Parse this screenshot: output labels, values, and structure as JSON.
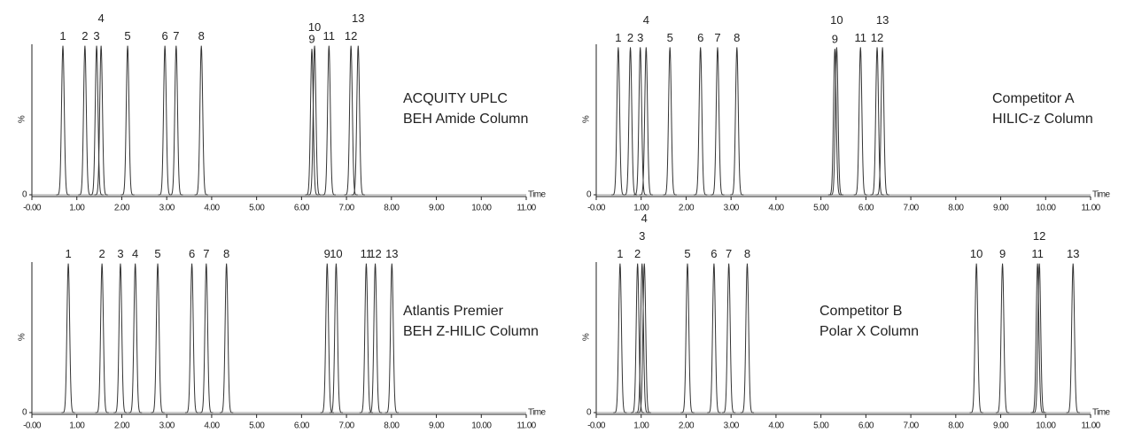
{
  "chart_data": [
    {
      "type": "chromatogram",
      "title_lines": [
        "ACQUITY UPLC",
        "BEH Amide Column"
      ],
      "x_label": "Time",
      "y_label": "%",
      "color": "#333333",
      "xlim": [
        0,
        11
      ],
      "ylim": [
        0,
        100
      ],
      "yticks": [
        0
      ],
      "xticks": [
        {
          "value": 0,
          "label": "-0.00"
        },
        {
          "value": 1,
          "label": "1.00"
        },
        {
          "value": 2,
          "label": "2.00"
        },
        {
          "value": 3,
          "label": "3.00"
        },
        {
          "value": 4,
          "label": "4.00"
        },
        {
          "value": 5,
          "label": "5.00"
        },
        {
          "value": 6,
          "label": "6.00"
        },
        {
          "value": 7,
          "label": "7.00"
        },
        {
          "value": 8,
          "label": "8.00"
        },
        {
          "value": 9,
          "label": "9.00"
        },
        {
          "value": 10,
          "label": "10.00"
        },
        {
          "value": 11,
          "label": "11.00"
        }
      ],
      "peak_labels": [
        "1",
        "2",
        "3",
        "4",
        "5",
        "6",
        "7",
        "8",
        "9",
        "10",
        "11",
        "12",
        "13"
      ],
      "x": [
        0.69,
        1.18,
        1.44,
        1.54,
        2.13,
        2.96,
        3.21,
        3.77,
        6.23,
        6.29,
        6.61,
        7.1,
        7.26
      ],
      "values": [
        99,
        99,
        99,
        99,
        99,
        99,
        99,
        99,
        97,
        99,
        99,
        99,
        99
      ]
    },
    {
      "type": "chromatogram",
      "title_lines": [
        "Competitor A",
        "HILIC-z Column"
      ],
      "x_label": "Time",
      "y_label": "%",
      "color": "#333333",
      "xlim": [
        0,
        11
      ],
      "ylim": [
        0,
        100
      ],
      "yticks": [
        0
      ],
      "xticks": [
        {
          "value": 0,
          "label": "-0.00"
        },
        {
          "value": 1,
          "label": "1.00"
        },
        {
          "value": 2,
          "label": "2.00"
        },
        {
          "value": 3,
          "label": "3.00"
        },
        {
          "value": 4,
          "label": "4.00"
        },
        {
          "value": 5,
          "label": "5.00"
        },
        {
          "value": 6,
          "label": "6.00"
        },
        {
          "value": 7,
          "label": "7.00"
        },
        {
          "value": 8,
          "label": "8.00"
        },
        {
          "value": 9,
          "label": "9.00"
        },
        {
          "value": 10,
          "label": "10.00"
        },
        {
          "value": 11,
          "label": "11.00"
        }
      ],
      "peak_labels": [
        "1",
        "2",
        "3",
        "4",
        "5",
        "6",
        "7",
        "8",
        "9",
        "10",
        "11",
        "12",
        "13"
      ],
      "x": [
        0.49,
        0.76,
        0.98,
        1.11,
        1.64,
        2.32,
        2.7,
        3.13,
        5.31,
        5.35,
        5.88,
        6.25,
        6.37
      ],
      "values": [
        98,
        98,
        98,
        98,
        98,
        98,
        98,
        98,
        97,
        98,
        98,
        98,
        98
      ]
    },
    {
      "type": "chromatogram",
      "title_lines": [
        "Atlantis Premier",
        "BEH Z-HILIC Column"
      ],
      "x_label": "Time",
      "y_label": "%",
      "color": "#333333",
      "xlim": [
        0,
        11
      ],
      "ylim": [
        0,
        100
      ],
      "yticks": [
        0
      ],
      "xticks": [
        {
          "value": 0,
          "label": "-0.00"
        },
        {
          "value": 1,
          "label": "1.00"
        },
        {
          "value": 2,
          "label": "2.00"
        },
        {
          "value": 3,
          "label": "3.00"
        },
        {
          "value": 4,
          "label": "4.00"
        },
        {
          "value": 5,
          "label": "5.00"
        },
        {
          "value": 6,
          "label": "6.00"
        },
        {
          "value": 7,
          "label": "7.00"
        },
        {
          "value": 8,
          "label": "8.00"
        },
        {
          "value": 9,
          "label": "9.00"
        },
        {
          "value": 10,
          "label": "10.00"
        },
        {
          "value": 11,
          "label": "11.00"
        }
      ],
      "peak_labels": [
        "1",
        "2",
        "3",
        "4",
        "5",
        "6",
        "7",
        "8",
        "9",
        "10",
        "11",
        "12",
        "13"
      ],
      "x": [
        0.81,
        1.56,
        1.97,
        2.3,
        2.8,
        3.56,
        3.88,
        4.33,
        6.57,
        6.77,
        7.44,
        7.64,
        8.01
      ],
      "values": [
        99,
        99,
        99,
        99,
        99,
        99,
        99,
        99,
        99,
        99,
        99,
        99,
        99
      ]
    },
    {
      "type": "chromatogram",
      "title_lines": [
        "Competitor B",
        "Polar X Column"
      ],
      "x_label": "Time",
      "y_label": "%",
      "color": "#333333",
      "xlim": [
        0,
        11
      ],
      "ylim": [
        0,
        100
      ],
      "yticks": [
        0
      ],
      "xticks": [
        {
          "value": 0,
          "label": "-0.00"
        },
        {
          "value": 1,
          "label": "1.00"
        },
        {
          "value": 2,
          "label": "2.00"
        },
        {
          "value": 3,
          "label": "3.00"
        },
        {
          "value": 4,
          "label": "4.00"
        },
        {
          "value": 5,
          "label": "5.00"
        },
        {
          "value": 6,
          "label": "6.00"
        },
        {
          "value": 7,
          "label": "7.00"
        },
        {
          "value": 8,
          "label": "8.00"
        },
        {
          "value": 9,
          "label": "9.00"
        },
        {
          "value": 10,
          "label": "10.00"
        },
        {
          "value": 11,
          "label": "11.00"
        }
      ],
      "peak_labels": [
        "1",
        "2",
        "3",
        "4",
        "5",
        "6",
        "7",
        "8",
        "9",
        "10",
        "11",
        "12",
        "13"
      ],
      "x": [
        0.53,
        0.92,
        1.02,
        1.07,
        2.03,
        2.62,
        2.95,
        3.36,
        9.04,
        8.46,
        9.82,
        9.86,
        10.61
      ],
      "values": [
        99,
        99,
        99,
        99,
        99,
        99,
        99,
        99,
        99,
        99,
        99,
        99,
        99
      ]
    }
  ]
}
